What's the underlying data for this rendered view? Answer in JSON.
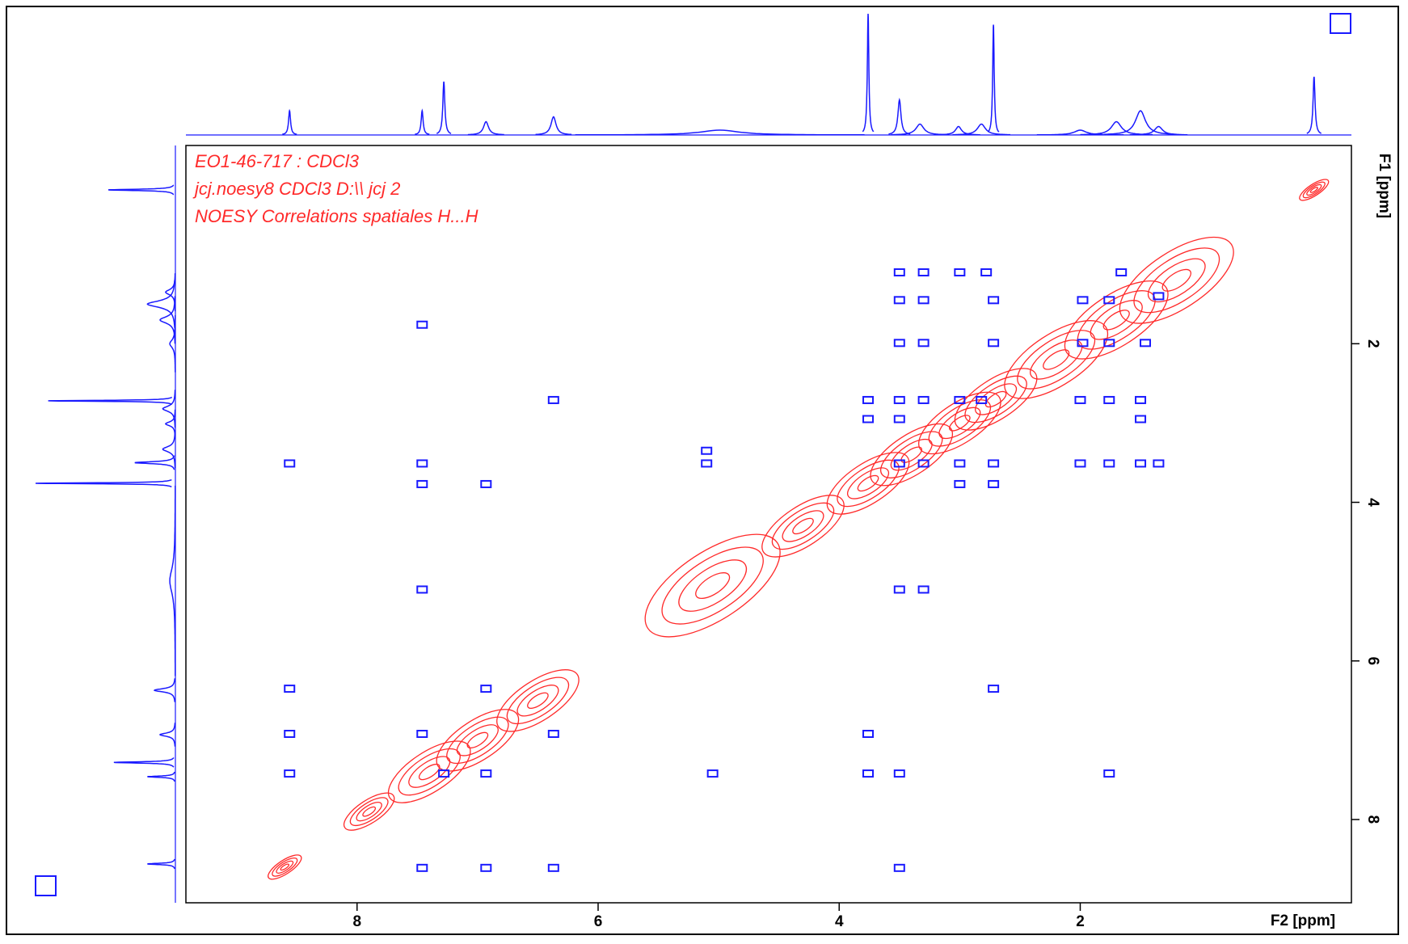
{
  "chart_data": {
    "type": "noesy",
    "annotations": [
      "EO1-46-717 : CDCl3",
      "jcj.noesy8 CDCl3 D:\\\\ jcj 2",
      "NOESY Correlations spatiales H...H"
    ],
    "xlabel": "F2 [ppm]",
    "ylabel": "F1 [ppm]",
    "xlim": [
      9.42,
      -0.25
    ],
    "ylim": [
      -0.5,
      9.05
    ],
    "xticks": [
      8,
      6,
      4,
      2
    ],
    "yticks": [
      2,
      4,
      6,
      8
    ],
    "projection": {
      "color": "#1a1aff",
      "positions": [
        8.56,
        7.46,
        7.28,
        6.93,
        6.37,
        4.99,
        3.76,
        3.5,
        3.33,
        3.01,
        2.82,
        2.72,
        2.0,
        1.7,
        1.5,
        1.35,
        0.06
      ],
      "heights": [
        20,
        20,
        44,
        11,
        15,
        4,
        100,
        29,
        9,
        7,
        9,
        91,
        4,
        11,
        20,
        7,
        48
      ],
      "widths": [
        0.02,
        0.02,
        0.02,
        0.05,
        0.05,
        0.4,
        0.015,
        0.03,
        0.08,
        0.06,
        0.08,
        0.015,
        0.12,
        0.1,
        0.1,
        0.08,
        0.02
      ]
    },
    "cross_peaks": {
      "color": "#1a1aff",
      "x": [
        8.56,
        7.46,
        7.46,
        6.93,
        7.46,
        6.37,
        8.56,
        6.93,
        2.72,
        8.56,
        7.46,
        6.37,
        3.76,
        8.56,
        7.28,
        6.93,
        5.05,
        3.76,
        3.5,
        1.76,
        7.46,
        6.93,
        6.37,
        3.5,
        7.46,
        3.5,
        3.3,
        5.1,
        5.1,
        3.76,
        3.5,
        3.3,
        3.0,
        2.82,
        2.0,
        1.76,
        1.5,
        3.76,
        3.5,
        1.5,
        3.5,
        3.3,
        3.0,
        2.72,
        2.0,
        1.76,
        1.5,
        1.35,
        3.0,
        2.72,
        3.5,
        3.3,
        3.0,
        2.78,
        1.66,
        1.35,
        3.5,
        3.3,
        2.72,
        1.98,
        1.76,
        3.5,
        3.3,
        2.72,
        1.98,
        1.76,
        1.46
      ],
      "y": [
        3.51,
        3.51,
        3.77,
        3.77,
        1.76,
        2.71,
        6.35,
        6.35,
        6.35,
        6.92,
        6.92,
        6.92,
        6.92,
        7.42,
        7.42,
        7.42,
        7.42,
        7.42,
        7.42,
        7.42,
        8.61,
        8.61,
        8.61,
        8.61,
        5.1,
        5.1,
        5.1,
        3.51,
        3.35,
        2.71,
        2.71,
        2.71,
        2.71,
        2.71,
        2.71,
        2.71,
        2.71,
        2.95,
        2.95,
        2.95,
        3.51,
        3.51,
        3.51,
        3.51,
        3.51,
        3.51,
        3.51,
        3.51,
        3.77,
        3.77,
        1.1,
        1.1,
        1.1,
        1.1,
        1.1,
        1.4,
        1.45,
        1.45,
        1.45,
        1.45,
        1.45,
        1.99,
        1.99,
        1.99,
        1.99,
        1.99,
        1.99
      ]
    },
    "diagonal": {
      "color": "#ff2a2a",
      "positions": [
        8.6,
        7.9,
        7.4,
        7.0,
        6.5,
        5.05,
        4.3,
        3.76,
        3.4,
        3.0,
        2.7,
        2.2,
        1.7,
        1.2,
        0.06
      ],
      "widths": [
        0.12,
        0.2,
        0.35,
        0.35,
        0.35,
        0.6,
        0.35,
        0.35,
        0.35,
        0.35,
        0.35,
        0.45,
        0.45,
        0.5,
        0.1
      ]
    }
  }
}
